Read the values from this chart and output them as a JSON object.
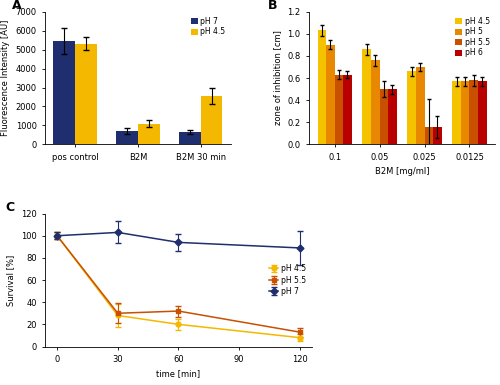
{
  "panelA": {
    "categories": [
      "pos control",
      "B2M",
      "B2M 30 min"
    ],
    "pH7_values": [
      5450,
      700,
      650
    ],
    "pH7_errors": [
      700,
      150,
      100
    ],
    "pH45_values": [
      5300,
      1100,
      2550
    ],
    "pH45_errors": [
      350,
      200,
      400
    ],
    "color_pH7": "#1f2e6e",
    "color_pH45": "#f5b800",
    "ylabel": "Fluorescence Intensity [AU]",
    "ylim": [
      0,
      7000
    ],
    "yticks": [
      0,
      1000,
      2000,
      3000,
      4000,
      5000,
      6000,
      7000
    ],
    "legend_labels": [
      "pH 7",
      "pH 4.5"
    ]
  },
  "panelB": {
    "concentrations": [
      "0.1",
      "0.05",
      "0.025",
      "0.0125"
    ],
    "pH45_values": [
      1.03,
      0.86,
      0.66,
      0.57
    ],
    "pH45_errors": [
      0.05,
      0.05,
      0.04,
      0.04
    ],
    "pH5_values": [
      0.9,
      0.76,
      0.7,
      0.57
    ],
    "pH5_errors": [
      0.04,
      0.05,
      0.04,
      0.04
    ],
    "pH55_values": [
      0.63,
      0.5,
      0.16,
      0.58
    ],
    "pH55_errors": [
      0.04,
      0.07,
      0.25,
      0.05
    ],
    "pH6_values": [
      0.63,
      0.5,
      0.16,
      0.57
    ],
    "pH6_errors": [
      0.03,
      0.04,
      0.1,
      0.04
    ],
    "color_pH45": "#f5c200",
    "color_pH5": "#e88800",
    "color_pH55": "#c85000",
    "color_pH6": "#b80000",
    "ylabel": "zone of inhibition [cm]",
    "xlabel": "B2M [mg/ml]",
    "ylim": [
      0,
      1.2
    ],
    "yticks": [
      0,
      0.2,
      0.4,
      0.6,
      0.8,
      1.0,
      1.2
    ],
    "legend_labels": [
      "pH 4.5",
      "pH 5",
      "pH 5.5",
      "pH 6"
    ]
  },
  "panelC": {
    "timepoints": [
      0,
      30,
      60,
      90,
      120
    ],
    "pH45_values": [
      100,
      28,
      20,
      null,
      8
    ],
    "pH45_errors": [
      3,
      10,
      5,
      null,
      3
    ],
    "pH55_values": [
      100,
      30,
      32,
      null,
      13
    ],
    "pH55_errors": [
      3,
      9,
      5,
      null,
      4
    ],
    "pH7_values": [
      100,
      103,
      94,
      null,
      89
    ],
    "pH7_errors": [
      3,
      10,
      8,
      null,
      15
    ],
    "color_pH45": "#f5b800",
    "color_pH55": "#c85000",
    "color_pH7": "#1f2e6e",
    "ylabel": "Survival [%]",
    "xlabel": "time [min]",
    "ylim": [
      0,
      120
    ],
    "yticks": [
      0,
      20,
      40,
      60,
      80,
      100,
      120
    ],
    "xticks": [
      0,
      30,
      60,
      90,
      120
    ],
    "legend_labels": [
      "pH 4.5",
      "pH 5.5",
      "pH 7"
    ]
  },
  "bg_color": "#ffffff",
  "tick_fontsize": 6,
  "label_fontsize": 6,
  "legend_fontsize": 5.5
}
